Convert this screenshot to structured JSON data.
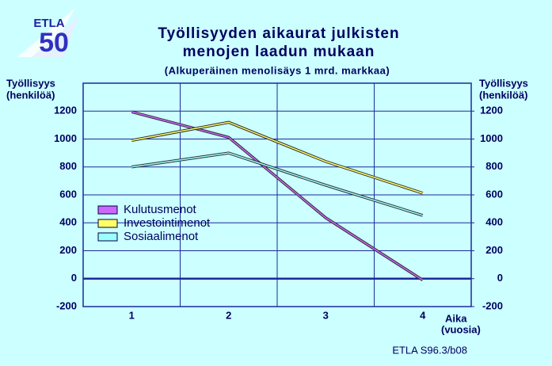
{
  "logo": [
    "ETLA",
    "50"
  ],
  "chart_data": {
    "type": "line",
    "title": [
      "Työllisyyden aikaurat julkisten",
      "menojen laadun mukaan"
    ],
    "subtitle": "(Alkuperäinen menolisäys 1 mrd. markkaa)",
    "ylabel": [
      "Työllisyys",
      "(henkilöä)"
    ],
    "y2label": [
      "Työllisyys",
      "(henkilöä)"
    ],
    "xlabel": [
      "Aika",
      "(vuosia)"
    ],
    "note": "ETLA S96.3/b08",
    "categories": [
      "1",
      "2",
      "3",
      "4"
    ],
    "series": [
      {
        "name": "Kulutusmenot",
        "color": "#cc66ff",
        "values": [
          1195,
          1012,
          436,
          -10
        ]
      },
      {
        "name": "Investointimenot",
        "color": "#ffff66",
        "values": [
          990,
          1120,
          839,
          612
        ]
      },
      {
        "name": "Sosiaalimenot",
        "color": "#99ffff",
        "values": [
          800,
          900,
          669,
          453
        ]
      }
    ],
    "ylim": [
      -200,
      1400
    ],
    "yticks": [
      -200,
      0,
      200,
      400,
      600,
      800,
      1000,
      1200
    ],
    "y2lim": [
      -200,
      1400
    ],
    "y2ticks": [
      -200,
      0,
      200,
      400,
      600,
      800,
      1000,
      1200
    ],
    "grid": true,
    "legend": "left"
  }
}
